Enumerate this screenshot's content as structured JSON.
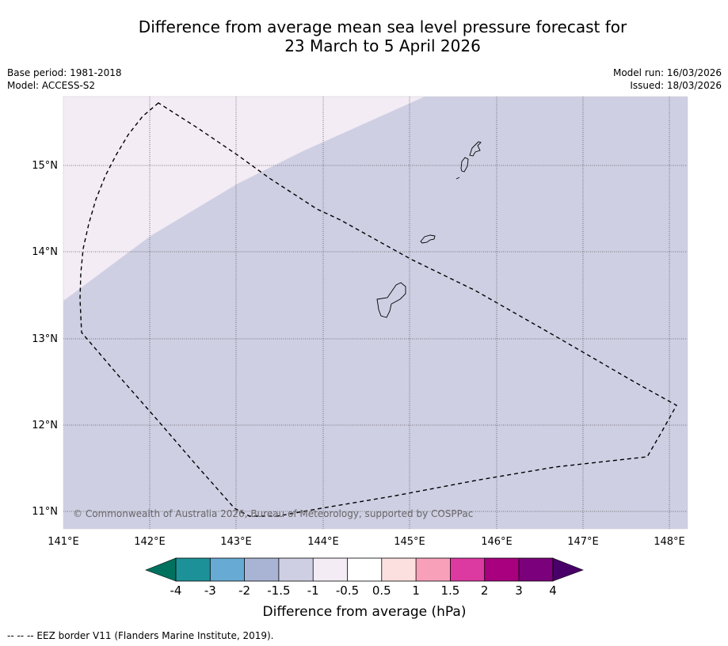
{
  "title": {
    "line1": "Difference from average mean sea level pressure forecast for",
    "line2": "23 March to 5 April 2026"
  },
  "meta": {
    "base_period": "Base period: 1981-2018",
    "model": "Model: ACCESS-S2",
    "model_run": "Model run: 16/03/2026",
    "issued": "Issued: 18/03/2026"
  },
  "map": {
    "lon_ticks": [
      "141°E",
      "142°E",
      "143°E",
      "144°E",
      "145°E",
      "146°E",
      "147°E",
      "148°E"
    ],
    "lat_ticks": [
      "15°N",
      "14°N",
      "13°N",
      "12°N",
      "11°N"
    ],
    "copyright": "© Commonwealth of Australia 2026, Bureau of Meteorology, supported by COSPPac",
    "colors": {
      "low_anomaly": "#cfcfe4",
      "near_zero": "#f3ecf5",
      "grid": "#555555",
      "border": "#000000"
    }
  },
  "colorbar": {
    "title": "Difference from average (hPa)",
    "ticks": [
      "-4",
      "-3",
      "-2",
      "-1.5",
      "-1",
      "-0.5",
      "0.5",
      "1",
      "1.5",
      "2",
      "3",
      "4"
    ],
    "colors": [
      "#00715e",
      "#1c9298",
      "#67aad3",
      "#a9b4d4",
      "#cfcfe4",
      "#f3ecf5",
      "#ffffff",
      "#fce0e0",
      "#f8a0ba",
      "#dc3aa0",
      "#a8007e",
      "#7b007b",
      "#480068"
    ]
  },
  "footer": {
    "legend": "--  --  -- EEZ border V11 (Flanders Marine Institute, 2019)."
  }
}
